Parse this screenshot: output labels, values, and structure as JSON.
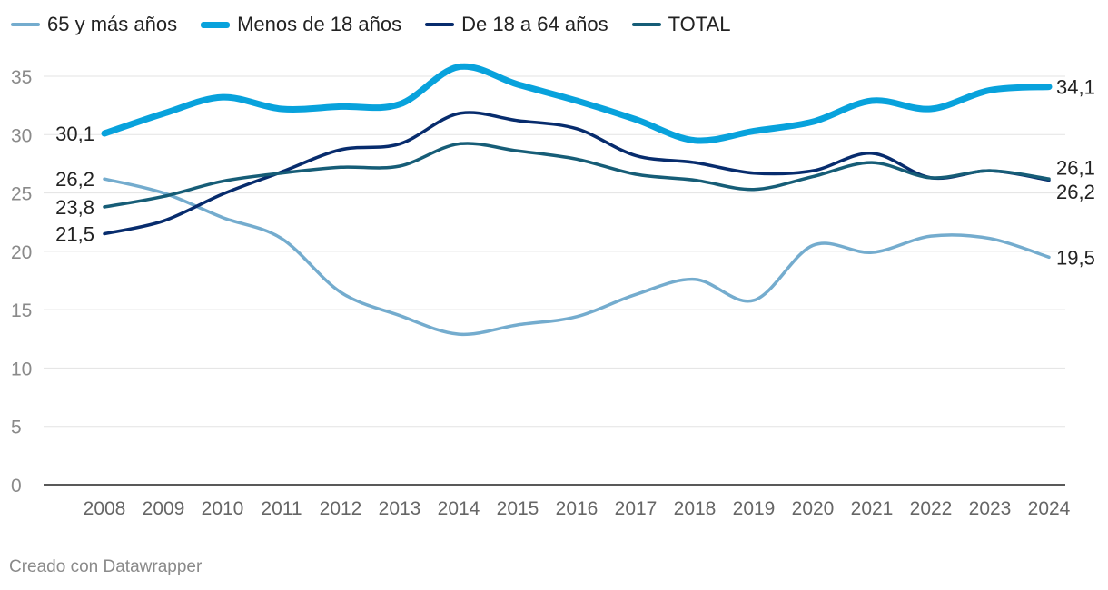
{
  "chart_data": {
    "type": "line",
    "title": "",
    "xlabel": "",
    "ylabel": "",
    "ylim": [
      0,
      35
    ],
    "yticks": [
      0,
      5,
      10,
      15,
      20,
      25,
      30,
      35
    ],
    "grid": true,
    "legend": "top-left",
    "categories": [
      "2008",
      "2009",
      "2010",
      "2011",
      "2012",
      "2013",
      "2014",
      "2015",
      "2016",
      "2017",
      "2018",
      "2019",
      "2020",
      "2021",
      "2022",
      "2023",
      "2024"
    ],
    "series": [
      {
        "name": "65 y más años",
        "color": "#74acce",
        "values": [
          26.2,
          25.0,
          22.9,
          21.1,
          16.5,
          14.5,
          12.9,
          13.7,
          14.4,
          16.3,
          17.6,
          15.8,
          20.5,
          19.9,
          21.3,
          21.1,
          19.5
        ],
        "label_first": "26,2",
        "label_last": "19,5"
      },
      {
        "name": "Menos de 18 años",
        "color": "#08a2dc",
        "values": [
          30.1,
          31.8,
          33.2,
          32.2,
          32.4,
          32.6,
          35.8,
          34.3,
          32.9,
          31.3,
          29.5,
          30.3,
          31.1,
          32.9,
          32.2,
          33.8,
          34.1
        ],
        "label_first": "30,1",
        "label_last": "34,1"
      },
      {
        "name": "De 18 a 64 años",
        "color": "#072c6d",
        "values": [
          21.5,
          22.6,
          24.9,
          26.8,
          28.7,
          29.2,
          31.8,
          31.2,
          30.5,
          28.2,
          27.6,
          26.7,
          26.9,
          28.4,
          26.3,
          26.9,
          26.1
        ],
        "label_first": "21,5",
        "label_last": "26,1"
      },
      {
        "name": "TOTAL",
        "color": "#165d77",
        "values": [
          23.8,
          24.7,
          26.0,
          26.7,
          27.2,
          27.3,
          29.2,
          28.6,
          27.9,
          26.6,
          26.1,
          25.3,
          26.4,
          27.6,
          26.3,
          26.9,
          26.2
        ],
        "label_first": "23,8",
        "label_last": "26,2"
      }
    ]
  },
  "footer": {
    "credit": "Creado con Datawrapper"
  }
}
